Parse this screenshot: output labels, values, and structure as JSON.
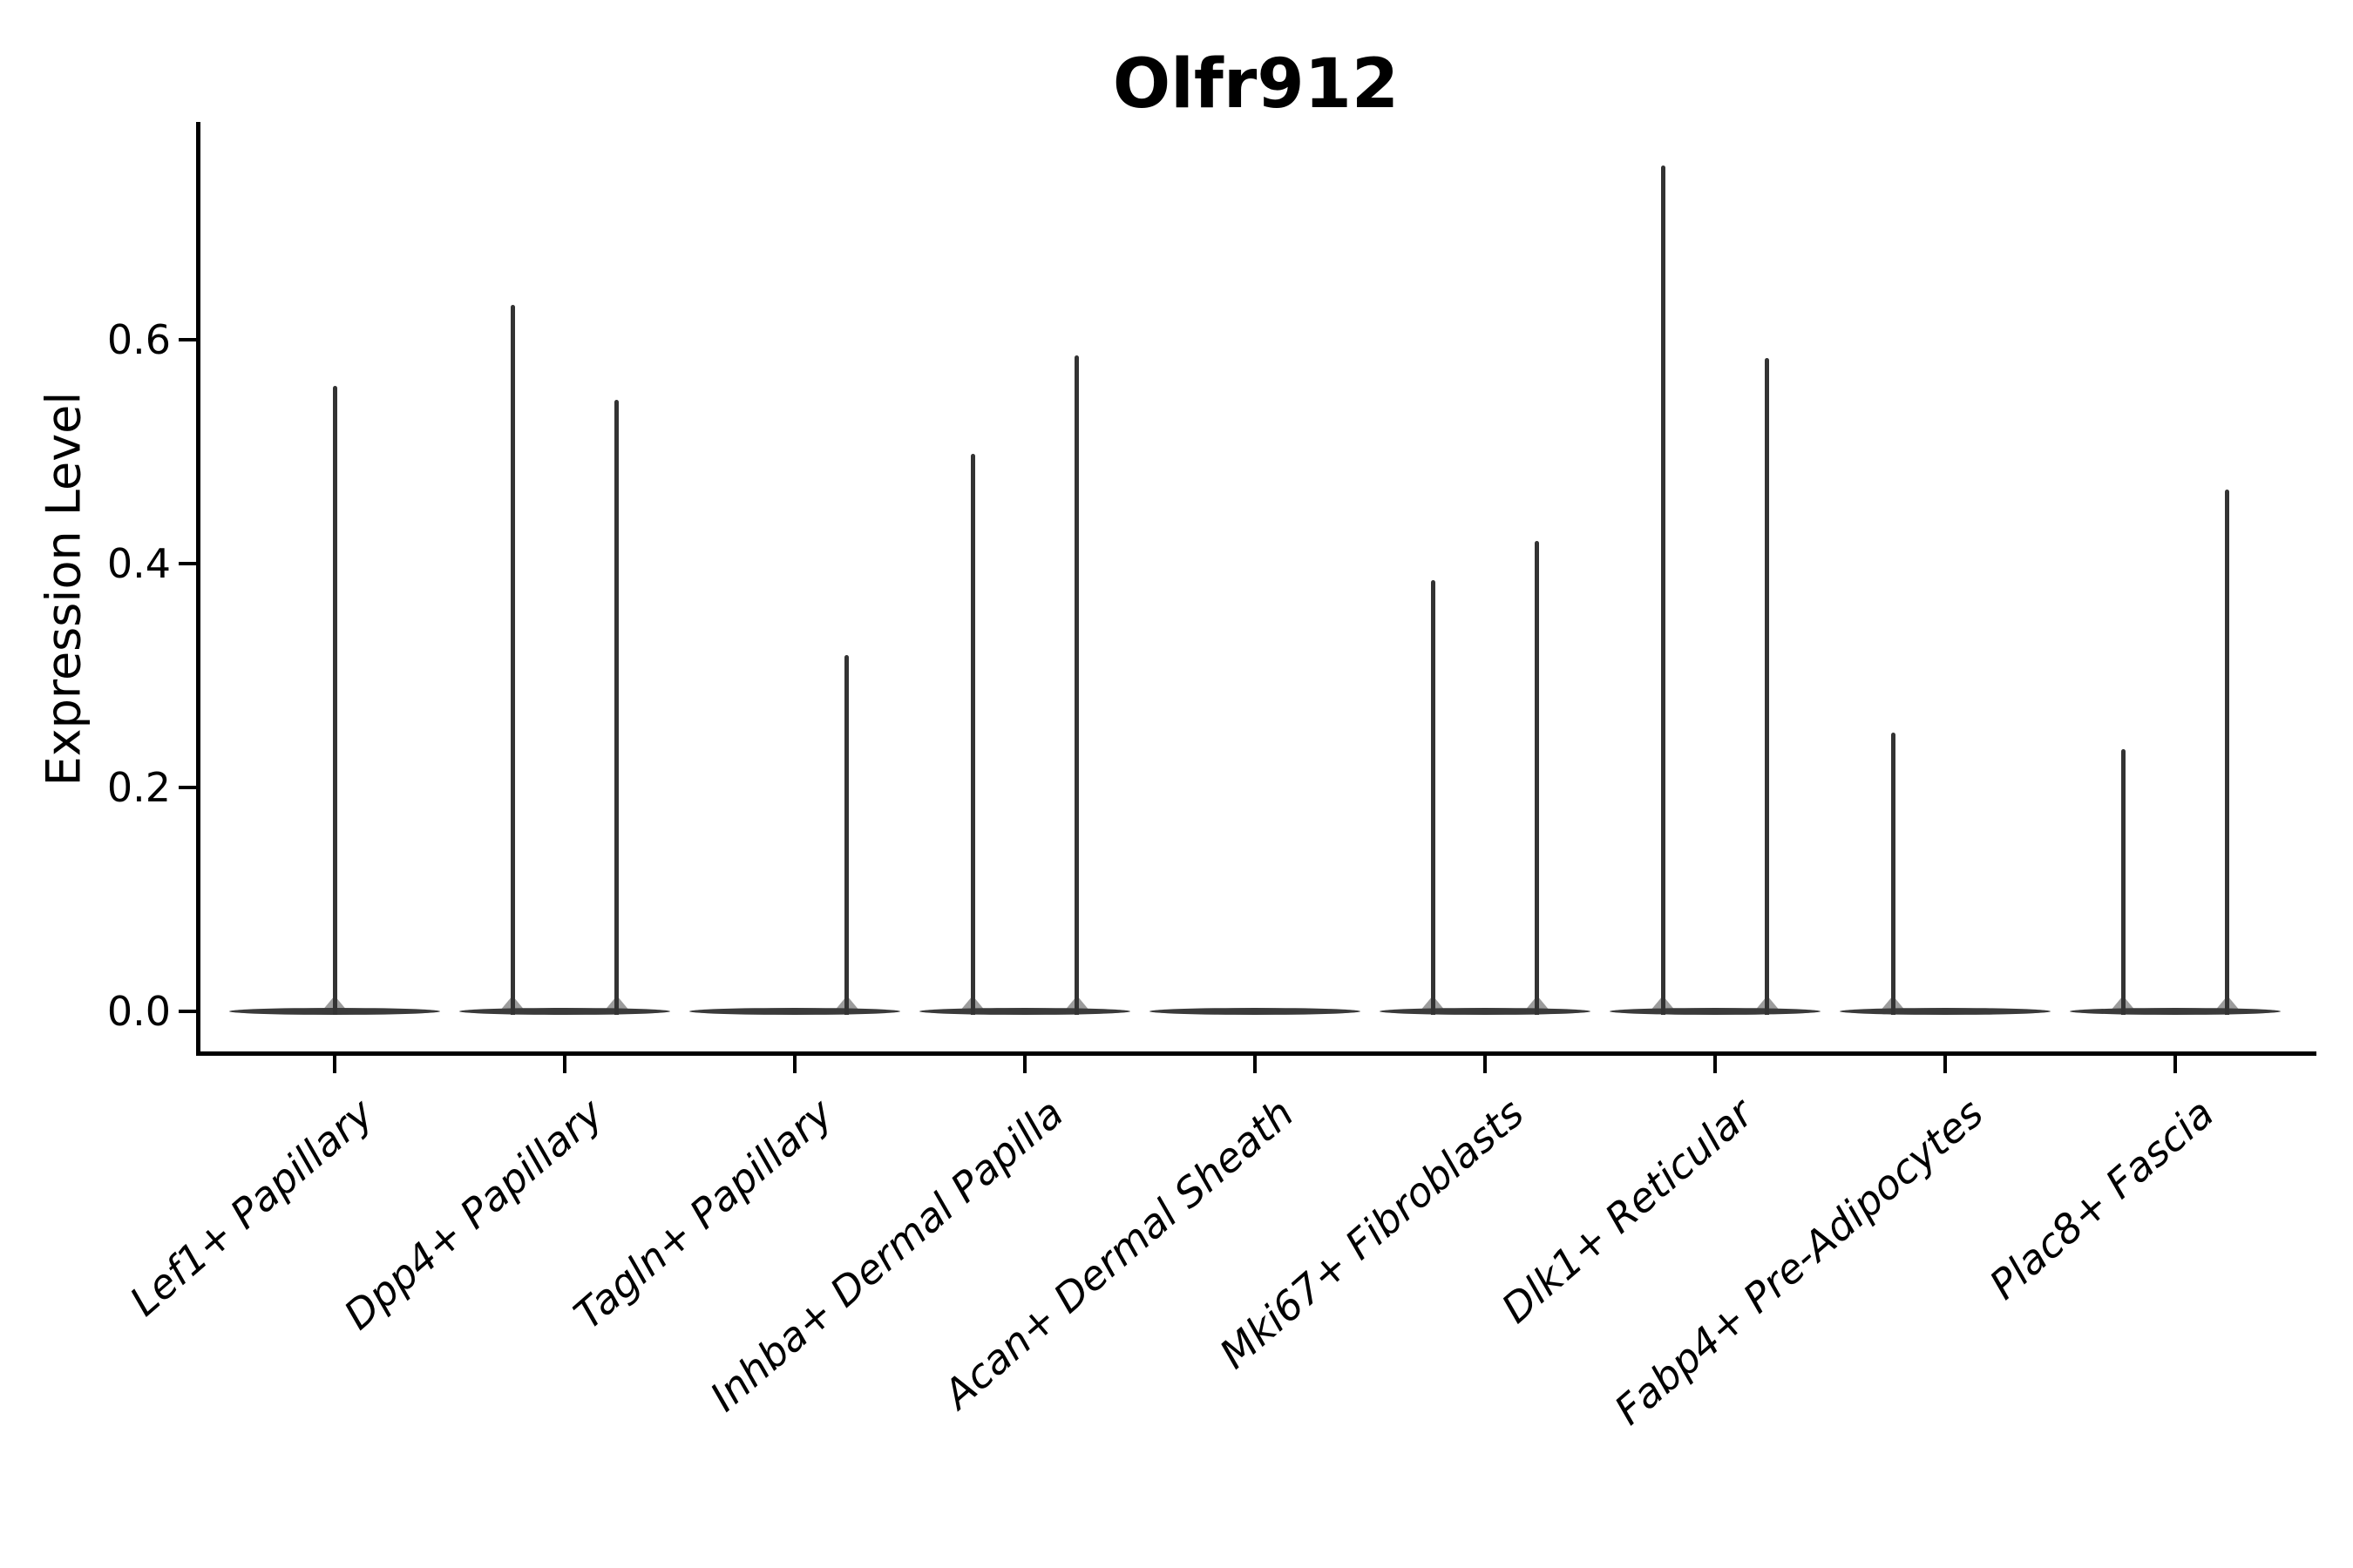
{
  "chart_data": {
    "type": "violin",
    "title": "Olfr912",
    "ylabel": "Expression Level",
    "xlabel": "",
    "ylim": [
      -0.036,
      0.795
    ],
    "yticks": [
      0,
      0.2,
      0.4,
      0.6
    ],
    "ytick_labels": [
      "0.0",
      "0.2",
      "0.4",
      "0.6"
    ],
    "grid": false,
    "legend": null,
    "categories": [
      "Lef1+ Papillary",
      "Dpp4+ Papillary",
      "Tagln+ Papillary",
      "Inhba+ Dermal Papilla",
      "Acan+ Dermal Sheath",
      "Mki67+ Fibroblasts",
      "Dlk1+ Reticular",
      "Fabp4+ Pre-Adipocytes",
      "Plac8+ Fascia"
    ],
    "violins": [
      {
        "category": "Lef1+ Papillary",
        "spikes": [
          {
            "offset": 0,
            "max": 0.559
          }
        ]
      },
      {
        "category": "Dpp4+ Papillary",
        "spikes": [
          {
            "offset": -0.227,
            "max": 0.631
          },
          {
            "offset": 0.227,
            "max": 0.546
          }
        ]
      },
      {
        "category": "Tagln+ Papillary",
        "spikes": [
          {
            "offset": 0.227,
            "max": 0.318
          }
        ]
      },
      {
        "category": "Inhba+ Dermal Papilla",
        "spikes": [
          {
            "offset": -0.227,
            "max": 0.498
          },
          {
            "offset": 0.227,
            "max": 0.586
          }
        ]
      },
      {
        "category": "Acan+ Dermal Sheath",
        "spikes": []
      },
      {
        "category": "Mki67+ Fibroblasts",
        "spikes": [
          {
            "offset": -0.227,
            "max": 0.385
          },
          {
            "offset": 0.227,
            "max": 0.42
          }
        ]
      },
      {
        "category": "Dlk1+ Reticular",
        "spikes": [
          {
            "offset": -0.227,
            "max": 0.756
          },
          {
            "offset": 0.227,
            "max": 0.584
          }
        ]
      },
      {
        "category": "Fabp4+ Pre-Adipocytes",
        "spikes": [
          {
            "offset": -0.227,
            "max": 0.249
          }
        ]
      },
      {
        "category": "Plac8+ Fascia",
        "spikes": [
          {
            "offset": -0.227,
            "max": 0.234
          },
          {
            "offset": 0.227,
            "max": 0.466
          }
        ]
      }
    ],
    "colors": {
      "violin": "#3a3a3a",
      "axis": "#000000",
      "text": "#000000",
      "background": "#ffffff"
    }
  }
}
